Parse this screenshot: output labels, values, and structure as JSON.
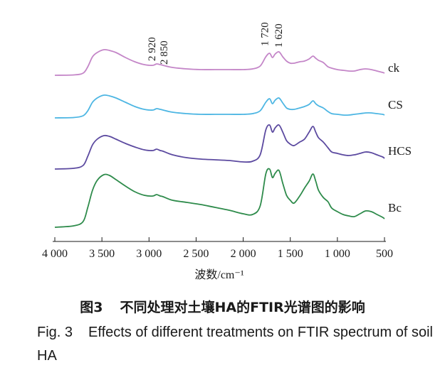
{
  "chart_data": {
    "type": "line",
    "title": "",
    "xlabel": "波数/cm⁻¹",
    "ylabel": "",
    "xlim": [
      4000,
      500
    ],
    "x_reversed": true,
    "x_ticks": [
      4000,
      3500,
      3000,
      2500,
      2000,
      1500,
      1000,
      500
    ],
    "x_tick_labels": [
      "4 000",
      "3 500",
      "3 000",
      "2 500",
      "2 000",
      "1 500",
      "1 000",
      "500"
    ],
    "annotations": [
      {
        "text": "2 920",
        "x": 2920
      },
      {
        "text": "2 850",
        "x": 2850
      },
      {
        "text": "1 720",
        "x": 1720
      },
      {
        "text": "1 620",
        "x": 1620
      }
    ],
    "series": [
      {
        "name": "ck",
        "color": "#c486c8",
        "label": "ck",
        "points": [
          [
            4000,
            0
          ],
          [
            3800,
            0.5
          ],
          [
            3700,
            3
          ],
          [
            3650,
            12
          ],
          [
            3600,
            26
          ],
          [
            3550,
            32
          ],
          [
            3480,
            36
          ],
          [
            3420,
            35
          ],
          [
            3350,
            32
          ],
          [
            3250,
            25
          ],
          [
            3150,
            19
          ],
          [
            3050,
            15
          ],
          [
            2960,
            14
          ],
          [
            2920,
            16
          ],
          [
            2880,
            15
          ],
          [
            2850,
            14
          ],
          [
            2750,
            11
          ],
          [
            2600,
            9
          ],
          [
            2450,
            8
          ],
          [
            2300,
            8
          ],
          [
            2150,
            8
          ],
          [
            2000,
            8
          ],
          [
            1900,
            9
          ],
          [
            1820,
            13
          ],
          [
            1760,
            26
          ],
          [
            1720,
            31
          ],
          [
            1690,
            25
          ],
          [
            1660,
            30
          ],
          [
            1620,
            33
          ],
          [
            1580,
            26
          ],
          [
            1540,
            20
          ],
          [
            1500,
            17
          ],
          [
            1460,
            17
          ],
          [
            1400,
            19
          ],
          [
            1350,
            20
          ],
          [
            1300,
            23
          ],
          [
            1260,
            27
          ],
          [
            1230,
            24
          ],
          [
            1200,
            21
          ],
          [
            1150,
            18
          ],
          [
            1100,
            12
          ],
          [
            1060,
            10
          ],
          [
            1000,
            8
          ],
          [
            940,
            7
          ],
          [
            880,
            6
          ],
          [
            820,
            6
          ],
          [
            760,
            8
          ],
          [
            700,
            9
          ],
          [
            640,
            8
          ],
          [
            580,
            6
          ],
          [
            520,
            4
          ],
          [
            500,
            3
          ]
        ]
      },
      {
        "name": "CS",
        "color": "#4db6e3",
        "label": "CS",
        "points": [
          [
            4000,
            0
          ],
          [
            3800,
            0.5
          ],
          [
            3700,
            3
          ],
          [
            3650,
            10
          ],
          [
            3600,
            22
          ],
          [
            3550,
            28
          ],
          [
            3480,
            32
          ],
          [
            3420,
            31
          ],
          [
            3350,
            28
          ],
          [
            3250,
            22
          ],
          [
            3150,
            16
          ],
          [
            3050,
            12
          ],
          [
            2960,
            11
          ],
          [
            2920,
            13
          ],
          [
            2880,
            12
          ],
          [
            2850,
            11
          ],
          [
            2750,
            8
          ],
          [
            2600,
            6
          ],
          [
            2450,
            5
          ],
          [
            2300,
            5
          ],
          [
            2150,
            5
          ],
          [
            2000,
            5
          ],
          [
            1900,
            6
          ],
          [
            1820,
            10
          ],
          [
            1760,
            22
          ],
          [
            1720,
            27
          ],
          [
            1690,
            20
          ],
          [
            1660,
            25
          ],
          [
            1620,
            28
          ],
          [
            1580,
            21
          ],
          [
            1540,
            14
          ],
          [
            1500,
            12
          ],
          [
            1460,
            12
          ],
          [
            1400,
            14
          ],
          [
            1350,
            16
          ],
          [
            1300,
            19
          ],
          [
            1260,
            24
          ],
          [
            1230,
            20
          ],
          [
            1200,
            17
          ],
          [
            1150,
            14
          ],
          [
            1100,
            9
          ],
          [
            1060,
            6
          ],
          [
            1000,
            5
          ],
          [
            940,
            4
          ],
          [
            880,
            4
          ],
          [
            820,
            5
          ],
          [
            760,
            6
          ],
          [
            700,
            7
          ],
          [
            640,
            7
          ],
          [
            580,
            6
          ],
          [
            520,
            5
          ],
          [
            500,
            4
          ]
        ]
      },
      {
        "name": "HCS",
        "color": "#5c4aa0",
        "label": "HCS",
        "points": [
          [
            4000,
            0
          ],
          [
            3800,
            1
          ],
          [
            3700,
            5
          ],
          [
            3650,
            18
          ],
          [
            3600,
            34
          ],
          [
            3550,
            42
          ],
          [
            3480,
            47
          ],
          [
            3420,
            46
          ],
          [
            3350,
            42
          ],
          [
            3250,
            36
          ],
          [
            3150,
            31
          ],
          [
            3050,
            27
          ],
          [
            2960,
            26
          ],
          [
            2920,
            28
          ],
          [
            2880,
            26
          ],
          [
            2850,
            25
          ],
          [
            2750,
            20
          ],
          [
            2600,
            16
          ],
          [
            2450,
            14
          ],
          [
            2300,
            13
          ],
          [
            2150,
            12
          ],
          [
            2000,
            10
          ],
          [
            1900,
            11
          ],
          [
            1820,
            20
          ],
          [
            1760,
            55
          ],
          [
            1720,
            62
          ],
          [
            1690,
            52
          ],
          [
            1660,
            58
          ],
          [
            1620,
            62
          ],
          [
            1580,
            52
          ],
          [
            1540,
            40
          ],
          [
            1500,
            35
          ],
          [
            1460,
            33
          ],
          [
            1400,
            38
          ],
          [
            1350,
            42
          ],
          [
            1300,
            52
          ],
          [
            1260,
            60
          ],
          [
            1230,
            52
          ],
          [
            1200,
            44
          ],
          [
            1150,
            38
          ],
          [
            1100,
            30
          ],
          [
            1060,
            24
          ],
          [
            1000,
            22
          ],
          [
            940,
            20
          ],
          [
            880,
            19
          ],
          [
            820,
            20
          ],
          [
            760,
            22
          ],
          [
            700,
            24
          ],
          [
            640,
            23
          ],
          [
            580,
            20
          ],
          [
            520,
            17
          ],
          [
            500,
            15
          ]
        ]
      },
      {
        "name": "Bc",
        "color": "#2e8b4b",
        "label": "Bc",
        "points": [
          [
            4000,
            0
          ],
          [
            3800,
            2
          ],
          [
            3700,
            8
          ],
          [
            3650,
            28
          ],
          [
            3600,
            52
          ],
          [
            3550,
            66
          ],
          [
            3480,
            74
          ],
          [
            3420,
            73
          ],
          [
            3350,
            67
          ],
          [
            3250,
            58
          ],
          [
            3150,
            50
          ],
          [
            3050,
            45
          ],
          [
            2960,
            44
          ],
          [
            2920,
            46
          ],
          [
            2880,
            44
          ],
          [
            2850,
            43
          ],
          [
            2750,
            38
          ],
          [
            2600,
            35
          ],
          [
            2450,
            32
          ],
          [
            2300,
            28
          ],
          [
            2150,
            24
          ],
          [
            2000,
            19
          ],
          [
            1900,
            18
          ],
          [
            1820,
            30
          ],
          [
            1760,
            75
          ],
          [
            1720,
            82
          ],
          [
            1690,
            70
          ],
          [
            1660,
            76
          ],
          [
            1620,
            80
          ],
          [
            1580,
            62
          ],
          [
            1540,
            45
          ],
          [
            1500,
            38
          ],
          [
            1460,
            34
          ],
          [
            1400,
            44
          ],
          [
            1350,
            55
          ],
          [
            1300,
            65
          ],
          [
            1260,
            75
          ],
          [
            1230,
            65
          ],
          [
            1200,
            52
          ],
          [
            1150,
            42
          ],
          [
            1100,
            36
          ],
          [
            1060,
            27
          ],
          [
            1000,
            22
          ],
          [
            940,
            18
          ],
          [
            880,
            16
          ],
          [
            820,
            15
          ],
          [
            760,
            19
          ],
          [
            700,
            23
          ],
          [
            640,
            22
          ],
          [
            580,
            18
          ],
          [
            520,
            14
          ],
          [
            500,
            12
          ]
        ]
      }
    ]
  },
  "caption": {
    "cn_fig": "图3",
    "cn_text": "不同处理对土壤HA的FTIR光谱图的影响",
    "en_fig": "Fig. 3",
    "en_text": "Effects of different treatments on FTIR spectrum of soil HA"
  }
}
